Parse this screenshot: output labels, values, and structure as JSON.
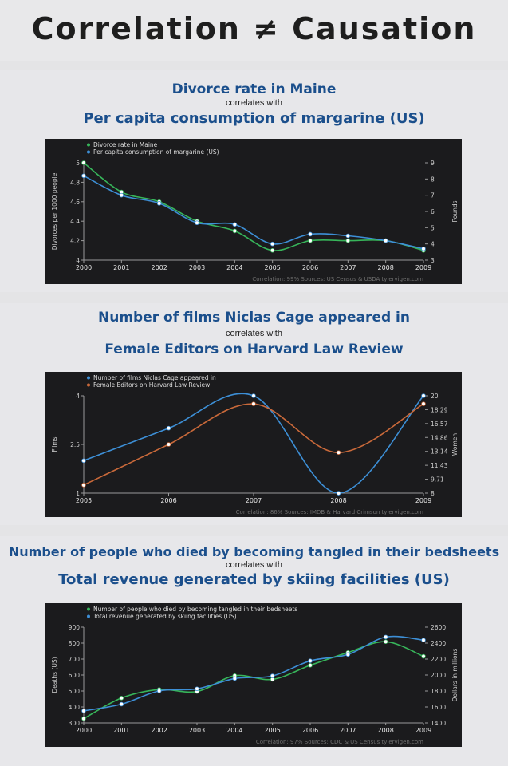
{
  "page": {
    "title": "Correlation ≠ Causation",
    "connector": "correlates with"
  },
  "colors": {
    "green": "#37b55a",
    "blue": "#3d8fd6",
    "orange": "#c9693a",
    "chart_bg": "#1b1b1d",
    "title_blue": "#1b4f8c"
  },
  "chart_data": [
    {
      "type": "line",
      "title_a": "Divorce rate in Maine",
      "title_b": "Per capita consumption of margarine (US)",
      "x": [
        "2000",
        "2001",
        "2002",
        "2003",
        "2004",
        "2005",
        "2006",
        "2007",
        "2008",
        "2009"
      ],
      "series": [
        {
          "name": "Divorce rate in Maine",
          "axis": "left",
          "color": "green",
          "values": [
            5.0,
            4.7,
            4.6,
            4.4,
            4.3,
            4.1,
            4.2,
            4.2,
            4.2,
            4.1
          ]
        },
        {
          "name": "Per capita consumption of margarine (US)",
          "axis": "right",
          "color": "blue",
          "values": [
            8.2,
            7.0,
            6.5,
            5.3,
            5.2,
            4.0,
            4.6,
            4.5,
            4.2,
            3.7
          ]
        }
      ],
      "ylabel_left": "Divorces per 1000 people",
      "ylabel_right": "Pounds",
      "ylim_left": [
        4.0,
        5.0
      ],
      "yticks_left": [
        "4",
        "4.2",
        "4.4",
        "4.6",
        "4.8",
        "5"
      ],
      "ylim_right": [
        3,
        9
      ],
      "yticks_right": [
        "3",
        "4",
        "5",
        "6",
        "7",
        "8",
        "9"
      ],
      "footer": "Correlation: 99%     Sources: US Census & USDA    tylervigen.com"
    },
    {
      "type": "line",
      "title_a": "Number of films Niclas Cage appeared in",
      "title_b": "Female Editors on Harvard Law Review",
      "x": [
        "2005",
        "2006",
        "2007",
        "2008",
        "2009"
      ],
      "series": [
        {
          "name": "Number of films Niclas Cage appeared in",
          "axis": "left",
          "color": "blue",
          "values": [
            2,
            3,
            4,
            1,
            4
          ]
        },
        {
          "name": "Female Editors on Harvard Law Review",
          "axis": "right",
          "color": "orange",
          "values": [
            9,
            14,
            19,
            13,
            19
          ]
        }
      ],
      "ylabel_left": "Films",
      "ylabel_right": "Women",
      "ylim_left": [
        1,
        4
      ],
      "yticks_left": [
        "1",
        "2.5",
        "4"
      ],
      "ylim_right": [
        8,
        20
      ],
      "yticks_right": [
        "8",
        "9.71",
        "11.43",
        "13.14",
        "14.86",
        "16.57",
        "18.29",
        "20"
      ],
      "footer": "Correlation: 86%     Sources: IMDB & Harvard Crimson    tylervigen.com"
    },
    {
      "type": "line",
      "title_a": "Number of people who died by becoming tangled in their bedsheets",
      "title_b": "Total revenue generated by skiing facilities (US)",
      "x": [
        "2000",
        "2001",
        "2002",
        "2003",
        "2004",
        "2005",
        "2006",
        "2007",
        "2008",
        "2009"
      ],
      "series": [
        {
          "name": "Number of people who died by becoming tangled in their bedsheets",
          "axis": "left",
          "color": "green",
          "values": [
            327,
            456,
            509,
            497,
            596,
            573,
            661,
            741,
            809,
            717
          ]
        },
        {
          "name": "Total revenue generated by skiing facilities (US)",
          "axis": "right",
          "color": "blue",
          "values": [
            1551,
            1635,
            1801,
            1827,
            1956,
            1989,
            2178,
            2257,
            2476,
            2438
          ]
        }
      ],
      "ylabel_left": "Deaths (US)",
      "ylabel_right": "Dollars in millions",
      "ylim_left": [
        300,
        900
      ],
      "yticks_left": [
        "300",
        "400",
        "500",
        "600",
        "700",
        "800",
        "900"
      ],
      "ylim_right": [
        1400,
        2600
      ],
      "yticks_right": [
        "1400",
        "1600",
        "1800",
        "2000",
        "2200",
        "2400",
        "2600"
      ],
      "footer": "Correlation: 97%     Sources: CDC & US Census    tylervigen.com"
    }
  ]
}
